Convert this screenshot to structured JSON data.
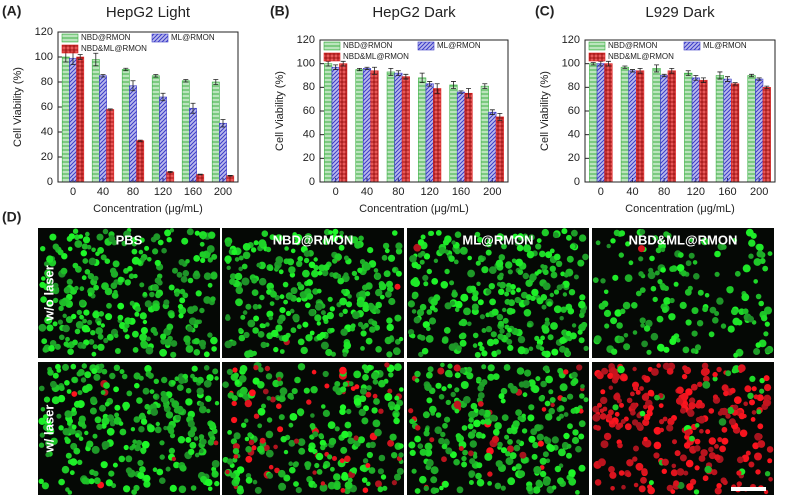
{
  "chart_data": [
    {
      "type": "bar",
      "panel_label": "(A)",
      "title": "HepG2 Light",
      "xlabel": "Concentration (μg/mL)",
      "ylabel": "Cell Viability (%)",
      "categories": [
        "0",
        "40",
        "80",
        "120",
        "160",
        "200"
      ],
      "series": [
        {
          "name": "NBD@RMON",
          "color": "#3cb043",
          "pattern": "horizontal",
          "values": [
            100,
            98,
            90,
            85,
            81,
            80
          ],
          "errors": [
            4,
            5,
            1,
            1,
            1,
            2
          ]
        },
        {
          "name": "ML@RMON",
          "color": "#3b3bc8",
          "pattern": "diagonal",
          "values": [
            99,
            85,
            77,
            68,
            59,
            47
          ],
          "errors": [
            5,
            1,
            4,
            3,
            4,
            3
          ]
        },
        {
          "name": "NBD&ML@RMON",
          "color": "#e02020",
          "pattern": "grid",
          "values": [
            100,
            58,
            33,
            8,
            6,
            5
          ],
          "errors": [
            2,
            0.5,
            0.5,
            0.5,
            0.3,
            0.3
          ]
        }
      ],
      "ylim": [
        0,
        120
      ],
      "yticks": [
        0,
        20,
        40,
        60,
        80,
        100,
        120
      ]
    },
    {
      "type": "bar",
      "panel_label": "(B)",
      "title": "HepG2 Dark",
      "xlabel": "Concentration (μg/mL)",
      "ylabel": "Cell Viability (%)",
      "categories": [
        "0",
        "40",
        "80",
        "120",
        "160",
        "200"
      ],
      "series": [
        {
          "name": "NBD@RMON",
          "color": "#3cb043",
          "pattern": "horizontal",
          "values": [
            100,
            95,
            93,
            88,
            82,
            81
          ],
          "errors": [
            2,
            1,
            3,
            4,
            3,
            2
          ]
        },
        {
          "name": "ML@RMON",
          "color": "#3b3bc8",
          "pattern": "diagonal",
          "values": [
            97,
            96,
            92,
            83,
            76,
            59
          ],
          "errors": [
            2,
            1,
            2,
            2,
            1,
            2
          ]
        },
        {
          "name": "NBD&ML@RMON",
          "color": "#e02020",
          "pattern": "grid",
          "values": [
            100,
            94,
            89,
            79,
            75,
            55
          ],
          "errors": [
            2,
            3,
            2,
            4,
            4,
            3
          ]
        }
      ],
      "ylim": [
        0,
        120
      ],
      "yticks": [
        0,
        20,
        40,
        60,
        80,
        100,
        120
      ]
    },
    {
      "type": "bar",
      "panel_label": "(C)",
      "title": "L929 Dark",
      "xlabel": "Concentration (μg/mL)",
      "ylabel": "Cell Viability (%)",
      "categories": [
        "0",
        "40",
        "80",
        "120",
        "160",
        "200"
      ],
      "series": [
        {
          "name": "NBD@RMON",
          "color": "#3cb043",
          "pattern": "horizontal",
          "values": [
            100,
            97,
            96,
            92,
            90,
            90
          ],
          "errors": [
            1,
            1,
            3,
            2,
            3,
            1
          ]
        },
        {
          "name": "ML@RMON",
          "color": "#3b3bc8",
          "pattern": "diagonal",
          "values": [
            100,
            94,
            90,
            88,
            87,
            87
          ],
          "errors": [
            2,
            1,
            1,
            2,
            2,
            1
          ]
        },
        {
          "name": "NBD&ML@RMON",
          "color": "#e02020",
          "pattern": "grid",
          "values": [
            100,
            94,
            94,
            86,
            83,
            80
          ],
          "errors": [
            2,
            2,
            2,
            2,
            1,
            1
          ]
        }
      ],
      "ylim": [
        0,
        120
      ],
      "yticks": [
        0,
        20,
        40,
        60,
        80,
        100,
        120
      ]
    }
  ],
  "panel_d": {
    "label": "(D)",
    "columns": [
      "PBS",
      "NBD@RMON",
      "ML@RMON",
      "NBD&ML@RMON"
    ],
    "rows": [
      "w/o laser",
      "w/ laser"
    ]
  }
}
